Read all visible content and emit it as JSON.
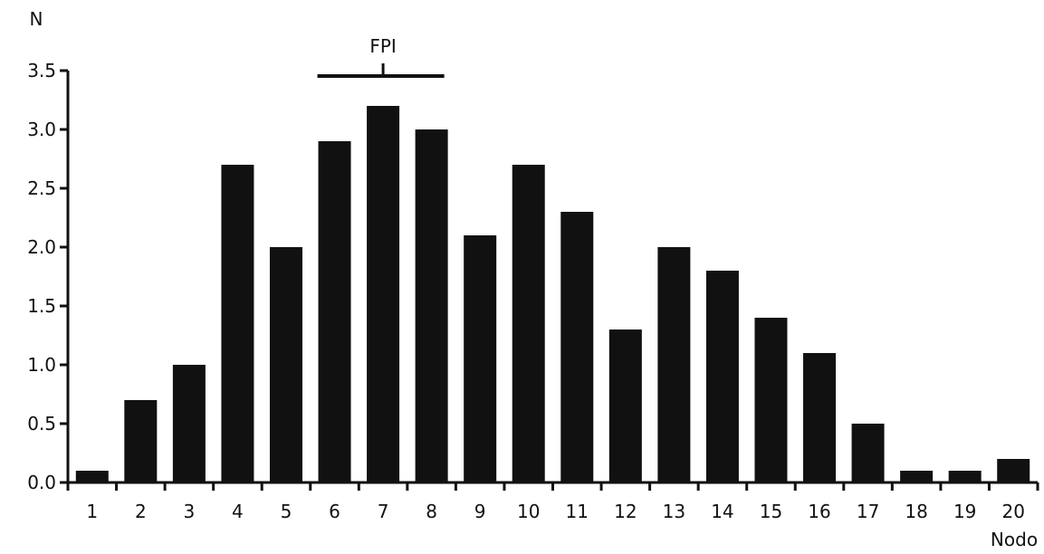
{
  "chart_data": {
    "type": "bar",
    "title": "",
    "xlabel": "Nodo",
    "ylabel": "N",
    "categories": [
      "1",
      "2",
      "3",
      "4",
      "5",
      "6",
      "7",
      "8",
      "9",
      "10",
      "11",
      "12",
      "13",
      "14",
      "15",
      "16",
      "17",
      "18",
      "19",
      "20"
    ],
    "values": [
      0.1,
      0.7,
      1.0,
      2.7,
      2.0,
      2.9,
      3.2,
      3.0,
      2.1,
      2.7,
      2.3,
      1.3,
      2.0,
      1.8,
      1.4,
      1.1,
      0.5,
      0.1,
      0.1,
      0.2
    ],
    "ylim": [
      0,
      3.5
    ],
    "yticks": [
      "0.0",
      "0.5",
      "1.0",
      "1.5",
      "2.0",
      "2.5",
      "3.0",
      "3.5"
    ],
    "grid": false,
    "bar_color": "#111111",
    "annotation": {
      "text": "FPI",
      "from_category": "6",
      "to_category": "8",
      "center_category": "7"
    }
  }
}
